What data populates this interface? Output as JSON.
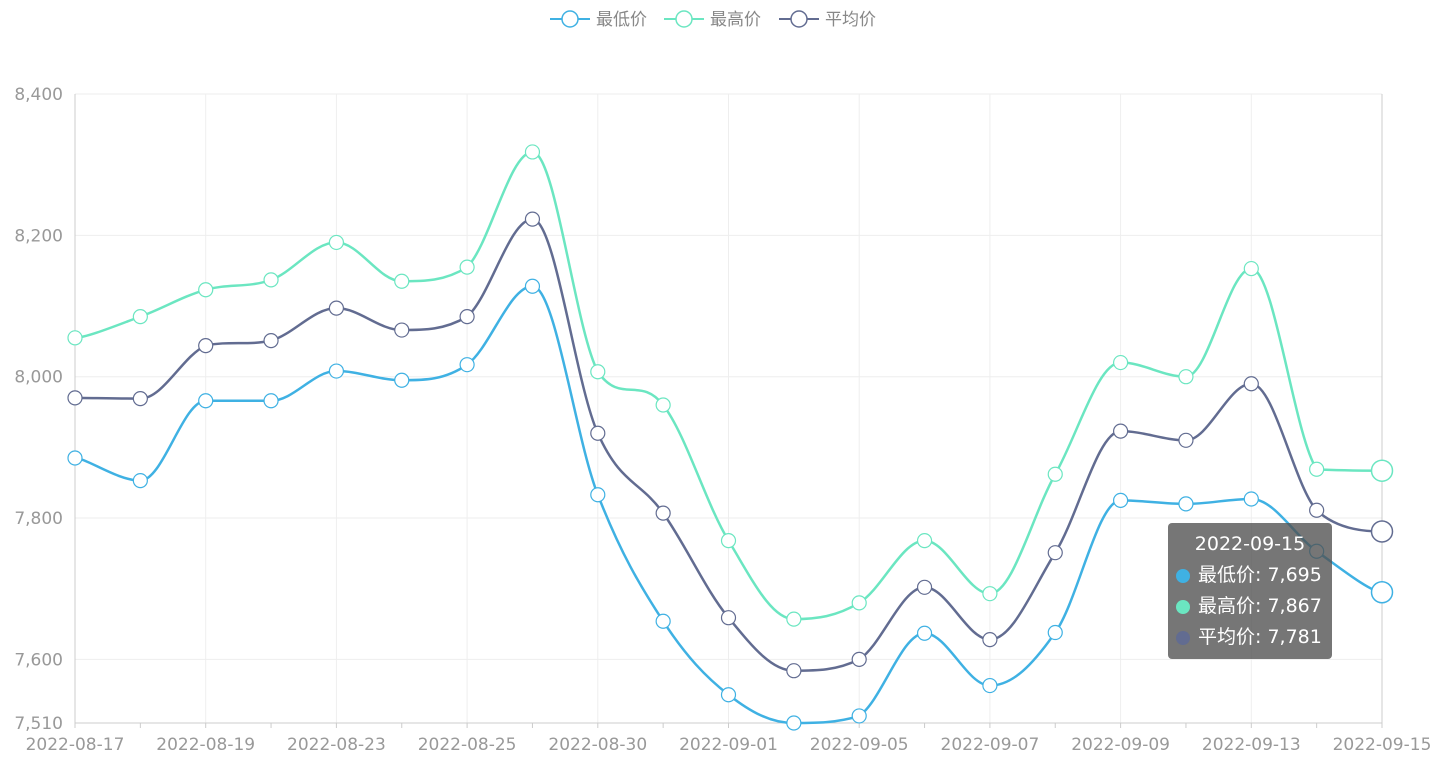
{
  "colors": {
    "min": "#3fb1e3",
    "max": "#6be6c1",
    "avg": "#626c91",
    "grid": "#eeeeee",
    "axis": "#cccccc",
    "label": "#999999"
  },
  "legend": {
    "min_label": "最低价",
    "max_label": "最高价",
    "avg_label": "平均价"
  },
  "tooltip": {
    "title": "2022-09-15",
    "min_text": "最低价: 7,695",
    "max_text": "最高价: 7,867",
    "avg_text": "平均价: 7,781"
  },
  "chart_data": {
    "type": "line",
    "smooth": true,
    "x": [
      "2022-08-17",
      "2022-08-18",
      "2022-08-19",
      "2022-08-22",
      "2022-08-23",
      "2022-08-24",
      "2022-08-25",
      "2022-08-26",
      "2022-08-30",
      "2022-08-31",
      "2022-09-01",
      "2022-09-02",
      "2022-09-05",
      "2022-09-06",
      "2022-09-07",
      "2022-09-08",
      "2022-09-09",
      "2022-09-12",
      "2022-09-13",
      "2022-09-14",
      "2022-09-15"
    ],
    "x_tick_labels": [
      "2022-08-17",
      "2022-08-19",
      "2022-08-23",
      "2022-08-25",
      "2022-08-30",
      "2022-09-01",
      "2022-09-05",
      "2022-09-07",
      "2022-09-09",
      "2022-09-13",
      "2022-09-15"
    ],
    "y_tick_labels": [
      "7,510",
      "7,600",
      "7,800",
      "8,000",
      "8,200",
      "8,400"
    ],
    "ylim": [
      7510,
      8400
    ],
    "grid": true,
    "legend_position": "top-center",
    "series": [
      {
        "name": "最低价",
        "values": [
          7885,
          7853,
          7966,
          7966,
          8008,
          7995,
          8017,
          8128,
          7833,
          7654,
          7550,
          7510,
          7520,
          7637,
          7563,
          7638,
          7825,
          7820,
          7827,
          7753,
          7695
        ]
      },
      {
        "name": "最高价",
        "values": [
          8055,
          8085,
          8123,
          8137,
          8190,
          8135,
          8155,
          8318,
          8007,
          7960,
          7768,
          7657,
          7680,
          7768,
          7693,
          7862,
          8020,
          8000,
          8153,
          7869,
          7867
        ]
      },
      {
        "name": "平均价",
        "values": [
          7970,
          7969,
          8044,
          8051,
          8097,
          8066,
          8085,
          8223,
          7920,
          7807,
          7659,
          7584,
          7600,
          7702,
          7628,
          7751,
          7923,
          7910,
          7990,
          7811,
          7781
        ]
      }
    ]
  }
}
